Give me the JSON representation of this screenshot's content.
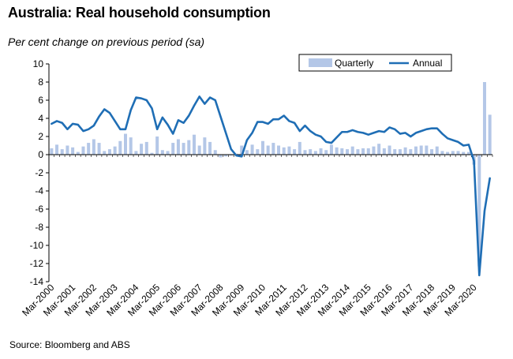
{
  "title": "Australia: Real household consumption",
  "subtitle": "Per cent change on previous period (sa)",
  "source": "Source: Bloomberg and ABS",
  "colors": {
    "quarterly": "#b4c7e7",
    "annual": "#1f6eb5",
    "axis": "#000000"
  },
  "chart_data": {
    "type": "bar+line",
    "ylim": [
      -14,
      10
    ],
    "yticks": [
      10,
      8,
      6,
      4,
      2,
      0,
      -2,
      -4,
      -6,
      -8,
      -10,
      -12,
      -14
    ],
    "x_tick_labels": [
      "Mar-2000",
      "Mar-2001",
      "Mar-2002",
      "Mar-2003",
      "Mar-2004",
      "Mar-2005",
      "Mar-2006",
      "Mar-2007",
      "Mar-2008",
      "Mar-2009",
      "Mar-2010",
      "Mar-2011",
      "Mar-2012",
      "Mar-2013",
      "Mar-2014",
      "Mar-2015",
      "Mar-2016",
      "Mar-2017",
      "Mar-2018",
      "Mar-2019",
      "Mar-2020"
    ],
    "grid": false,
    "legend_position": "top-right",
    "series": [
      {
        "name": "Quarterly",
        "kind": "bar",
        "values": [
          0.7,
          1.1,
          0.6,
          1.0,
          0.8,
          0.3,
          0.9,
          1.3,
          1.7,
          1.3,
          0.4,
          0.6,
          0.9,
          1.5,
          2.3,
          1.9,
          0.4,
          1.2,
          1.4,
          0.2,
          2.0,
          0.5,
          0.4,
          1.3,
          1.7,
          1.3,
          1.6,
          2.2,
          1.0,
          1.9,
          1.4,
          0.5,
          -0.3,
          -0.2,
          -0.1,
          0.1,
          1.0,
          0.5,
          1.1,
          0.6,
          1.5,
          1.0,
          1.3,
          1.0,
          0.8,
          0.9,
          0.6,
          1.4,
          0.5,
          0.6,
          0.4,
          0.7,
          0.5,
          1.1,
          0.8,
          0.7,
          0.6,
          0.9,
          0.6,
          0.7,
          0.7,
          0.9,
          1.2,
          0.7,
          1.0,
          0.6,
          0.6,
          0.8,
          0.6,
          0.9,
          1.0,
          1.0,
          0.6,
          0.9,
          0.4,
          0.3,
          0.4,
          0.4,
          0.3,
          0.3,
          -1.1,
          -12.3,
          8.0,
          4.4
        ]
      },
      {
        "name": "Annual",
        "kind": "line",
        "values": [
          3.4,
          3.7,
          3.5,
          2.8,
          3.4,
          3.3,
          2.6,
          2.8,
          3.2,
          4.2,
          5.0,
          4.6,
          3.7,
          2.8,
          2.8,
          4.9,
          6.3,
          6.2,
          6.0,
          5.1,
          2.8,
          4.1,
          3.3,
          2.3,
          3.8,
          3.5,
          4.3,
          5.4,
          6.4,
          5.6,
          6.3,
          6.0,
          4.2,
          2.4,
          0.6,
          -0.1,
          -0.2,
          1.6,
          2.4,
          3.6,
          3.6,
          3.4,
          3.9,
          3.9,
          4.3,
          3.7,
          3.5,
          2.6,
          3.2,
          2.6,
          2.2,
          2.0,
          1.4,
          1.3,
          1.9,
          2.5,
          2.5,
          2.7,
          2.5,
          2.4,
          2.2,
          2.4,
          2.6,
          2.5,
          3.0,
          2.8,
          2.3,
          2.4,
          2.0,
          2.4,
          2.6,
          2.8,
          2.9,
          2.9,
          2.3,
          1.8,
          1.6,
          1.4,
          1.0,
          1.1,
          -0.7,
          -13.3,
          -6.2,
          -2.6
        ]
      }
    ]
  }
}
